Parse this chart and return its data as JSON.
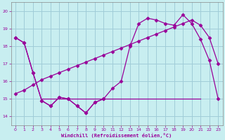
{
  "background_color": "#c8eef0",
  "grid_color": "#a0ccd8",
  "line_color": "#990099",
  "xlabel": "Windchill (Refroidissement éolien,°C)",
  "xlim": [
    -0.5,
    23.5
  ],
  "ylim": [
    13.5,
    20.5
  ],
  "yticks": [
    14,
    15,
    16,
    17,
    18,
    19,
    20
  ],
  "xticks": [
    0,
    1,
    2,
    3,
    4,
    5,
    6,
    7,
    8,
    9,
    10,
    11,
    12,
    13,
    14,
    15,
    16,
    17,
    18,
    19,
    20,
    21,
    22,
    23
  ],
  "series1_x": [
    0,
    1,
    2,
    3,
    4,
    5,
    6,
    7,
    8,
    9,
    10
  ],
  "series1_y": [
    18.5,
    18.2,
    16.5,
    14.9,
    14.6,
    15.1,
    15.0,
    14.6,
    14.2,
    14.8,
    15.0
  ],
  "series2_x": [
    0,
    1,
    2,
    3,
    4,
    5,
    6,
    7,
    8,
    9,
    10,
    11,
    12,
    13,
    14,
    15,
    16,
    17,
    18,
    19,
    20,
    21,
    22,
    23
  ],
  "series2_y": [
    15.3,
    15.5,
    15.8,
    16.1,
    16.3,
    16.5,
    16.7,
    16.9,
    17.1,
    17.3,
    17.5,
    17.7,
    17.9,
    18.1,
    18.3,
    18.5,
    18.7,
    18.9,
    19.1,
    19.3,
    19.5,
    19.2,
    18.5,
    17.0
  ],
  "series3_x": [
    0,
    1,
    2,
    3,
    4,
    5,
    6,
    7,
    8,
    9,
    10,
    11,
    12,
    13,
    14,
    15,
    16,
    17,
    18,
    19,
    20,
    21,
    22,
    23
  ],
  "series3_y": [
    18.5,
    18.2,
    16.5,
    14.9,
    14.6,
    15.1,
    15.0,
    14.6,
    14.2,
    14.8,
    15.0,
    15.6,
    16.0,
    18.0,
    19.3,
    19.6,
    19.5,
    19.3,
    19.2,
    19.8,
    19.3,
    18.4,
    17.2,
    15.0
  ],
  "series_flat_x": [
    3,
    4,
    5,
    6,
    7,
    8,
    9,
    10,
    11,
    12,
    13,
    14,
    15,
    16,
    17,
    18,
    19,
    20,
    21
  ],
  "series_flat_y": [
    15.0,
    15.0,
    15.0,
    15.0,
    15.0,
    15.0,
    15.0,
    15.0,
    15.0,
    15.0,
    15.0,
    15.0,
    15.0,
    15.0,
    15.0,
    15.0,
    15.0,
    15.0,
    15.0
  ],
  "marker": "D",
  "marker_size": 2.5,
  "line_width": 0.9
}
